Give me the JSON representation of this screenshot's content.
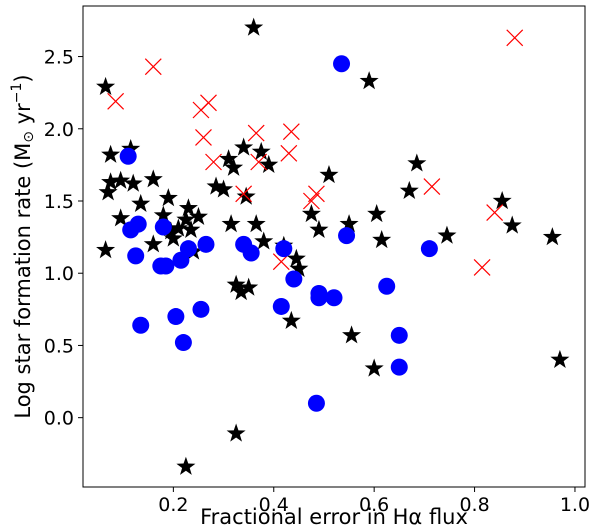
{
  "chart_data": {
    "type": "scatter",
    "xlabel": "Fractional error in Hα flux",
    "ylabel_main": "Log star formation rate (M",
    "ylabel_sun": "⊙",
    "ylabel_unit": " yr",
    "ylabel_exp": "−1",
    "ylabel_close": ")",
    "xlim": [
      0.02,
      1.02
    ],
    "ylim": [
      -0.48,
      2.85
    ],
    "xticks": [
      {
        "v": 0.2,
        "label": "0.2"
      },
      {
        "v": 0.4,
        "label": "0.4"
      },
      {
        "v": 0.6,
        "label": "0.6"
      },
      {
        "v": 0.8,
        "label": "0.8"
      },
      {
        "v": 1.0,
        "label": "1.0"
      }
    ],
    "yticks": [
      {
        "v": 0.0,
        "label": "0.0"
      },
      {
        "v": 0.5,
        "label": "0.5"
      },
      {
        "v": 1.0,
        "label": "1.0"
      },
      {
        "v": 1.5,
        "label": "1.5"
      },
      {
        "v": 2.0,
        "label": "2.0"
      },
      {
        "v": 2.5,
        "label": "2.5"
      }
    ],
    "grid": false,
    "legend": "none",
    "series": [
      {
        "marker": "star",
        "color": "#000000",
        "points": [
          [
            0.065,
            2.29
          ],
          [
            0.07,
            1.56
          ],
          [
            0.075,
            1.63
          ],
          [
            0.075,
            1.82
          ],
          [
            0.065,
            1.16
          ],
          [
            0.095,
            1.64
          ],
          [
            0.095,
            1.38
          ],
          [
            0.115,
            1.86
          ],
          [
            0.12,
            1.62
          ],
          [
            0.135,
            1.48
          ],
          [
            0.16,
            1.65
          ],
          [
            0.16,
            1.2
          ],
          [
            0.18,
            1.4
          ],
          [
            0.19,
            1.52
          ],
          [
            0.195,
            1.29
          ],
          [
            0.2,
            1.24
          ],
          [
            0.21,
            1.31
          ],
          [
            0.225,
            1.37
          ],
          [
            0.23,
            1.45
          ],
          [
            0.235,
            1.3
          ],
          [
            0.24,
            1.15
          ],
          [
            0.225,
            -0.34
          ],
          [
            0.25,
            1.39
          ],
          [
            0.285,
            1.6
          ],
          [
            0.3,
            1.58
          ],
          [
            0.31,
            1.79
          ],
          [
            0.32,
            1.73
          ],
          [
            0.315,
            1.34
          ],
          [
            0.325,
            0.92
          ],
          [
            0.325,
            -0.11
          ],
          [
            0.335,
            0.87
          ],
          [
            0.34,
            1.87
          ],
          [
            0.345,
            1.53
          ],
          [
            0.35,
            0.9
          ],
          [
            0.36,
            2.7
          ],
          [
            0.365,
            1.34
          ],
          [
            0.375,
            1.84
          ],
          [
            0.38,
            1.22
          ],
          [
            0.39,
            1.75
          ],
          [
            0.42,
            1.19
          ],
          [
            0.435,
            0.67
          ],
          [
            0.445,
            1.1
          ],
          [
            0.45,
            1.03
          ],
          [
            0.475,
            1.41
          ],
          [
            0.49,
            1.3
          ],
          [
            0.51,
            1.68
          ],
          [
            0.55,
            1.34
          ],
          [
            0.555,
            0.57
          ],
          [
            0.59,
            2.33
          ],
          [
            0.6,
            0.34
          ],
          [
            0.605,
            1.41
          ],
          [
            0.615,
            1.23
          ],
          [
            0.67,
            1.57
          ],
          [
            0.685,
            1.76
          ],
          [
            0.745,
            1.26
          ],
          [
            0.855,
            1.5
          ],
          [
            0.875,
            1.33
          ],
          [
            0.955,
            1.25
          ],
          [
            0.97,
            0.4
          ]
        ]
      },
      {
        "marker": "x",
        "color": "#ff0000",
        "points": [
          [
            0.085,
            2.19
          ],
          [
            0.16,
            2.43
          ],
          [
            0.255,
            2.13
          ],
          [
            0.27,
            2.18
          ],
          [
            0.26,
            1.94
          ],
          [
            0.28,
            1.77
          ],
          [
            0.365,
            1.97
          ],
          [
            0.37,
            1.77
          ],
          [
            0.435,
            1.98
          ],
          [
            0.43,
            1.83
          ],
          [
            0.34,
            1.55
          ],
          [
            0.415,
            1.08
          ],
          [
            0.475,
            1.5
          ],
          [
            0.485,
            1.55
          ],
          [
            0.715,
            1.6
          ],
          [
            0.815,
            1.04
          ],
          [
            0.84,
            1.42
          ],
          [
            0.88,
            2.63
          ]
        ]
      },
      {
        "marker": "circle",
        "color": "#0000ff",
        "points": [
          [
            0.11,
            1.81
          ],
          [
            0.115,
            1.3
          ],
          [
            0.13,
            1.34
          ],
          [
            0.125,
            1.12
          ],
          [
            0.135,
            0.64
          ],
          [
            0.175,
            1.05
          ],
          [
            0.185,
            1.05
          ],
          [
            0.18,
            1.32
          ],
          [
            0.205,
            0.7
          ],
          [
            0.215,
            1.09
          ],
          [
            0.22,
            0.52
          ],
          [
            0.23,
            1.17
          ],
          [
            0.255,
            0.75
          ],
          [
            0.265,
            1.2
          ],
          [
            0.34,
            1.2
          ],
          [
            0.355,
            1.14
          ],
          [
            0.415,
            0.77
          ],
          [
            0.42,
            1.17
          ],
          [
            0.44,
            0.96
          ],
          [
            0.485,
            0.1
          ],
          [
            0.49,
            0.83
          ],
          [
            0.49,
            0.86
          ],
          [
            0.52,
            0.83
          ],
          [
            0.535,
            2.45
          ],
          [
            0.545,
            1.26
          ],
          [
            0.625,
            0.91
          ],
          [
            0.65,
            0.57
          ],
          [
            0.65,
            0.35
          ],
          [
            0.71,
            1.17
          ]
        ]
      }
    ]
  }
}
